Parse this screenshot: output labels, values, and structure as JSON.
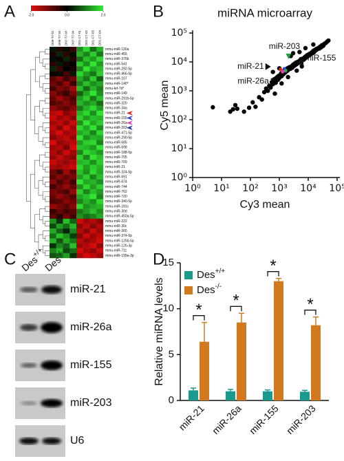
{
  "chart_data": [
    {
      "type": "heatmap",
      "panel": "A",
      "clim": [
        -2,
        2
      ],
      "cticks": [
        {
          "value": -2,
          "label": "-2.0"
        },
        {
          "value": 0,
          "label": "0.0"
        },
        {
          "value": 2,
          "label": "2.0"
        }
      ],
      "columns": [
        "D08-T7-01",
        "D08-T7-02",
        "D07-T7-03",
        "D07-T7-04",
        "D01-C7-01",
        "D01-C7-02",
        "D01-C7-03",
        "D01-C7-04"
      ],
      "rows": [
        "mmu-miR-130a",
        "mmu-miR-455",
        "mmu-miR-376b",
        "mmu-miR-541",
        "mmu-miR-292-5p",
        "mmu-miR-466-5p",
        "mmu-miR-107",
        "mmu-miR-140*",
        "mmu-let-7d*",
        "mmu-miR-149",
        "mmu-miR-291b-5p",
        "mmu-miR-320",
        "mmu-miR-34a",
        "mmu-miR-21",
        "mmu-miR-155",
        "mmu-miR-26a",
        "mmu-miR-203",
        "mmu-miR-471-5p",
        "mmu-miR-290-5p",
        "mmu-miR-685",
        "mmu-miR-698",
        "mmu-miR-188-5p",
        "mmu-miR-705",
        "mmu-miR-709",
        "mmu-miR-21",
        "mmu-miR-324-5p",
        "mmu-miR-691",
        "mmu-miR-674",
        "mmu-miR-744",
        "mmu-miR-762",
        "mmu-miR-720",
        "mmu-miR-340-5p",
        "mmu-miR-181c",
        "mmu-miR-30d",
        "mmu-miR-450a-5p",
        "mmu-miR-222",
        "mmu-miR-30c",
        "mmu-miR-365",
        "mmu-miR-374-5p",
        "mmu-miR-125b-5p",
        "mmu-miR-126-3p",
        "mmu-miR-711",
        "mmu-miR-199a-3p"
      ],
      "values": [
        [
          0.2,
          -0.3,
          0.1,
          -0.5,
          1.2,
          1.8,
          0.9,
          1.5
        ],
        [
          -0.2,
          0.3,
          -0.4,
          0.1,
          1.5,
          1.1,
          1.7,
          1.0
        ],
        [
          0.1,
          -0.1,
          0.3,
          -0.3,
          0.9,
          1.6,
          1.3,
          1.8
        ],
        [
          -0.4,
          0.2,
          -0.2,
          0.0,
          1.7,
          1.2,
          1.9,
          1.3
        ],
        [
          0.3,
          -0.5,
          0.0,
          -0.2,
          1.1,
          1.9,
          1.4,
          1.6
        ],
        [
          -0.1,
          0.1,
          -0.6,
          0.2,
          1.8,
          1.3,
          1.0,
          1.7
        ],
        [
          -0.8,
          -1.2,
          -0.6,
          -1.0,
          1.4,
          1.0,
          1.7,
          0.8
        ],
        [
          -1.0,
          -0.7,
          -1.3,
          -0.5,
          1.1,
          1.6,
          1.2,
          1.4
        ],
        [
          -0.6,
          -1.1,
          -0.9,
          -1.4,
          1.6,
          0.9,
          1.5,
          1.1
        ],
        [
          -1.2,
          -0.8,
          -0.5,
          -1.1,
          0.8,
          1.4,
          1.9,
          1.2
        ],
        [
          -0.9,
          -1.4,
          -1.0,
          -0.7,
          1.3,
          1.7,
          1.0,
          1.6
        ],
        [
          -0.7,
          -0.9,
          -1.2,
          -0.8,
          1.5,
          1.2,
          1.4,
          0.9
        ],
        [
          -1.3,
          -1.0,
          -0.8,
          -1.2,
          1.0,
          1.5,
          1.8,
          1.3
        ],
        [
          -1.6,
          -1.8,
          -1.2,
          -1.5,
          1.5,
          1.8,
          1.2,
          1.9
        ],
        [
          -1.8,
          -1.4,
          -1.6,
          -1.2,
          1.7,
          1.3,
          1.6,
          1.5
        ],
        [
          -1.4,
          -1.7,
          -1.3,
          -1.8,
          1.2,
          1.9,
          1.4,
          1.7
        ],
        [
          -1.7,
          -1.2,
          -1.9,
          -1.4,
          1.8,
          1.4,
          1.9,
          1.2
        ],
        [
          -1.5,
          -1.9,
          -1.4,
          -1.6,
          1.4,
          1.6,
          1.1,
          1.8
        ],
        [
          -1.2,
          -1.5,
          -1.7,
          -1.3,
          1.9,
          1.2,
          1.5,
          1.4
        ],
        [
          -1.9,
          -1.3,
          -1.5,
          -1.7,
          1.3,
          1.7,
          1.8,
          1.1
        ],
        [
          -1.4,
          -1.6,
          -1.1,
          -1.9,
          1.6,
          1.5,
          1.3,
          1.9
        ],
        [
          -1.6,
          -1.2,
          -1.8,
          -1.4,
          1.1,
          1.8,
          1.6,
          1.3
        ],
        [
          -1.3,
          -1.7,
          -1.4,
          -1.2,
          1.7,
          1.1,
          1.9,
          1.6
        ],
        [
          -1.8,
          -1.5,
          -1.3,
          -1.6,
          1.5,
          1.6,
          1.2,
          1.7
        ],
        [
          -1.5,
          -1.4,
          -1.6,
          -1.8,
          1.8,
          1.3,
          1.7,
          1.5
        ],
        [
          -1.0,
          -0.6,
          -1.4,
          -0.8,
          1.6,
          1.2,
          1.8,
          1.4
        ],
        [
          -0.8,
          -1.2,
          -0.9,
          -1.1,
          1.3,
          1.7,
          1.1,
          1.6
        ],
        [
          -1.2,
          -0.7,
          -1.1,
          -0.6,
          1.9,
          1.4,
          1.5,
          1.2
        ],
        [
          -0.6,
          -1.0,
          -1.3,
          -0.9,
          1.2,
          1.8,
          1.3,
          1.7
        ],
        [
          -1.1,
          -0.9,
          -0.7,
          -1.3,
          1.7,
          1.1,
          1.6,
          1.3
        ],
        [
          -0.9,
          -1.3,
          -1.0,
          -0.7,
          1.4,
          1.6,
          1.9,
          1.1
        ],
        [
          -0.7,
          -0.8,
          -1.2,
          -1.0,
          1.1,
          1.5,
          1.2,
          1.8
        ],
        [
          -1.3,
          -1.1,
          -0.8,
          -1.2,
          1.8,
          1.2,
          1.4,
          1.5
        ],
        [
          -0.5,
          -0.9,
          -0.6,
          -0.8,
          1.0,
          1.3,
          1.6,
          1.2
        ],
        [
          -0.8,
          -0.4,
          -1.0,
          -0.6,
          1.2,
          0.9,
          1.1,
          1.4
        ],
        [
          1.2,
          0.4,
          1.6,
          0.8,
          -1.8,
          -1.4,
          -1.6,
          -1.2
        ],
        [
          0.6,
          1.3,
          0.9,
          1.5,
          -1.3,
          -1.7,
          -1.2,
          -1.6
        ],
        [
          1.4,
          0.8,
          0.3,
          1.1,
          -1.6,
          -1.2,
          -1.8,
          -1.4
        ],
        [
          0.9,
          1.6,
          1.2,
          0.5,
          -1.2,
          -1.8,
          -1.4,
          -1.7
        ],
        [
          1.5,
          0.7,
          1.4,
          1.0,
          -1.7,
          -1.3,
          -1.5,
          -1.9
        ],
        [
          0.4,
          1.1,
          0.8,
          1.6,
          -1.4,
          -1.6,
          -1.9,
          -1.3
        ],
        [
          1.1,
          1.5,
          0.6,
          0.9,
          -1.9,
          -1.5,
          -1.3,
          -1.8
        ],
        [
          0.7,
          0.9,
          1.3,
          0.4,
          -1.5,
          -1.9,
          -1.7,
          -1.4
        ]
      ]
    },
    {
      "type": "scatter",
      "panel": "B",
      "title": "miRNA microarray",
      "x_label": "Cy3 mean",
      "y_label": "Cy5 mean",
      "log": true,
      "color": "#000000",
      "xlim": [
        1,
        100000
      ],
      "ylim": [
        1,
        100000
      ],
      "xticks": [
        {
          "value": 1,
          "label": "10⁰"
        },
        {
          "value": 10,
          "label": "10¹"
        },
        {
          "value": 100,
          "label": "10²"
        },
        {
          "value": 1000,
          "label": "10³"
        },
        {
          "value": 10000,
          "label": "10⁴"
        },
        {
          "value": 100000,
          "label": "10⁵"
        }
      ],
      "yticks": [
        {
          "value": 1,
          "label": "10⁰"
        },
        {
          "value": 10,
          "label": "10¹"
        },
        {
          "value": 100,
          "label": "10²"
        },
        {
          "value": 1000,
          "label": "10³"
        },
        {
          "value": 10000,
          "label": "10⁴"
        },
        {
          "value": 100000,
          "label": "10⁵"
        }
      ],
      "x": [
        5,
        20,
        25,
        30,
        35,
        60,
        90,
        120,
        150,
        200,
        250,
        300,
        350,
        400,
        450,
        500,
        550,
        600,
        700,
        750,
        800,
        850,
        900,
        950,
        1000,
        1100,
        1150,
        1200,
        1300,
        1400,
        1500,
        1600,
        1700,
        1800,
        1900,
        2000,
        2200,
        2400,
        2600,
        2800,
        3000,
        3200,
        3400,
        3600,
        3800,
        4000,
        4300,
        4600,
        5000,
        5300,
        5600,
        6000,
        6500,
        7000,
        7500,
        8000,
        8500,
        9000,
        9500,
        10000,
        11000,
        12000,
        13000,
        14000,
        15000,
        16000,
        17000,
        18000,
        19000,
        20000,
        22000,
        24000,
        26000,
        28000,
        30000,
        33000,
        36000,
        40000,
        45000,
        50000,
        2500,
        3000,
        5000,
        8000,
        1000,
        600,
        15000,
        700,
        1200,
        2000,
        4000,
        6000
      ],
      "values": [
        270,
        190,
        230,
        320,
        240,
        190,
        260,
        400,
        280,
        600,
        500,
        900,
        1200,
        1000,
        1500,
        1300,
        2000,
        1700,
        2200,
        1900,
        2600,
        3000,
        2400,
        3300,
        2800,
        3500,
        4000,
        3200,
        4500,
        3800,
        5000,
        4300,
        5500,
        4800,
        6000,
        5200,
        6500,
        5800,
        7000,
        6300,
        8000,
        7200,
        8800,
        7800,
        9500,
        8500,
        10000,
        9200,
        11000,
        10000,
        12500,
        11000,
        13000,
        12000,
        14500,
        13500,
        16000,
        15000,
        17500,
        16000,
        19000,
        18000,
        21000,
        20000,
        24000,
        22000,
        26000,
        25000,
        28000,
        27000,
        30000,
        29000,
        34000,
        32000,
        38000,
        36000,
        42000,
        45000,
        50000,
        55000,
        16000,
        20000,
        22000,
        30000,
        6000,
        4500,
        40000,
        800,
        1800,
        3000,
        5000,
        7000
      ],
      "highlights": [
        {
          "label": "miR-21",
          "color": "#e8231f",
          "x": 1100,
          "y": 5500
        },
        {
          "label": "miR-203",
          "color": "#2d45d8",
          "x": 1500,
          "y": 5800
        },
        {
          "label": "miR-155",
          "color": "#22b04a",
          "x": 1650,
          "y": 5000
        },
        {
          "label": "miR-26a",
          "color": "#e040c0",
          "x": 1300,
          "y": 4600
        }
      ]
    },
    {
      "type": "bar",
      "panel": "D",
      "y_label": "Relative miRNA levels",
      "categories": [
        "miR-21",
        "miR-26a",
        "miR-155",
        "miR-203"
      ],
      "ylim": [
        0,
        15
      ],
      "yticks": [
        0,
        5,
        10,
        15
      ],
      "significance": [
        "*",
        "*",
        "*",
        "*"
      ],
      "series": [
        {
          "name": "Des",
          "name_sup": "+/+",
          "color": "#1a9a8c",
          "values": [
            1.1,
            1.0,
            1.0,
            0.95
          ],
          "errors": [
            0.25,
            0.2,
            0.15,
            0.15
          ]
        },
        {
          "name": "Des",
          "name_sup": "-/-",
          "color": "#d2781e",
          "values": [
            6.4,
            8.5,
            13.0,
            8.2
          ],
          "errors": [
            2.1,
            1.0,
            0.3,
            0.9
          ]
        }
      ]
    }
  ],
  "blot": {
    "panel": "C",
    "lanes": [
      {
        "name": "Des",
        "sup": "+/+"
      },
      {
        "name": "Des",
        "sup": "-/-"
      }
    ],
    "rows": [
      "miR-21",
      "miR-26a",
      "miR-155",
      "miR-203",
      "U6"
    ]
  }
}
